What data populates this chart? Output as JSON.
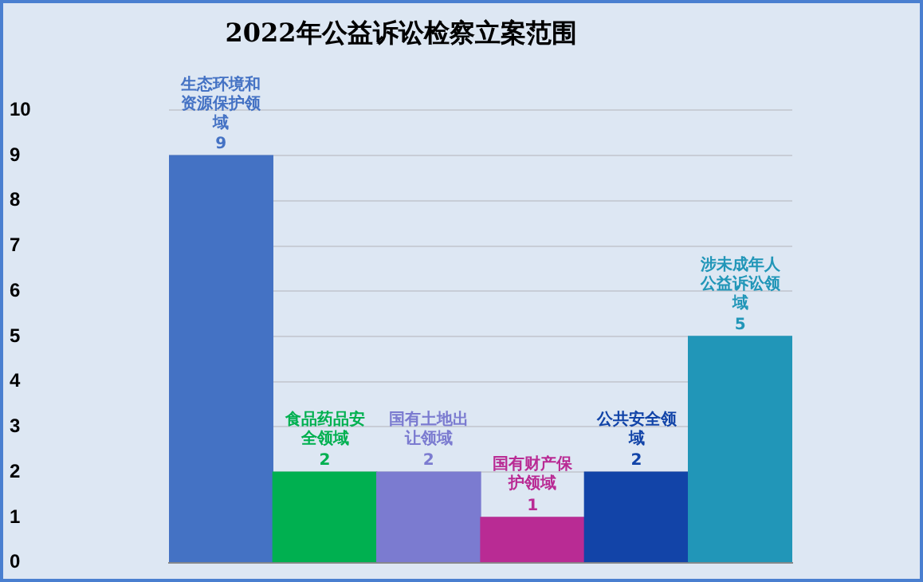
{
  "chart_data": {
    "type": "bar",
    "title": "2022年公益诉讼检察立案范围",
    "categories": [
      "生态环境和资源保护领域",
      "食品药品安全领域",
      "国有土地出让领域",
      "国有财产保护领域",
      "公共安全领域",
      "涉未成年人公益诉讼领域"
    ],
    "values": [
      9,
      2,
      2,
      1,
      2,
      5
    ],
    "colors": [
      "#4472c4",
      "#00b050",
      "#7b7bd0",
      "#b92b94",
      "#1244a8",
      "#2196b8"
    ],
    "ylim": [
      0,
      10
    ],
    "yticks": [
      0,
      1,
      2,
      3,
      4,
      5,
      6,
      7,
      8,
      9,
      10
    ],
    "grid": "y",
    "legend": false,
    "data_labels": true
  }
}
